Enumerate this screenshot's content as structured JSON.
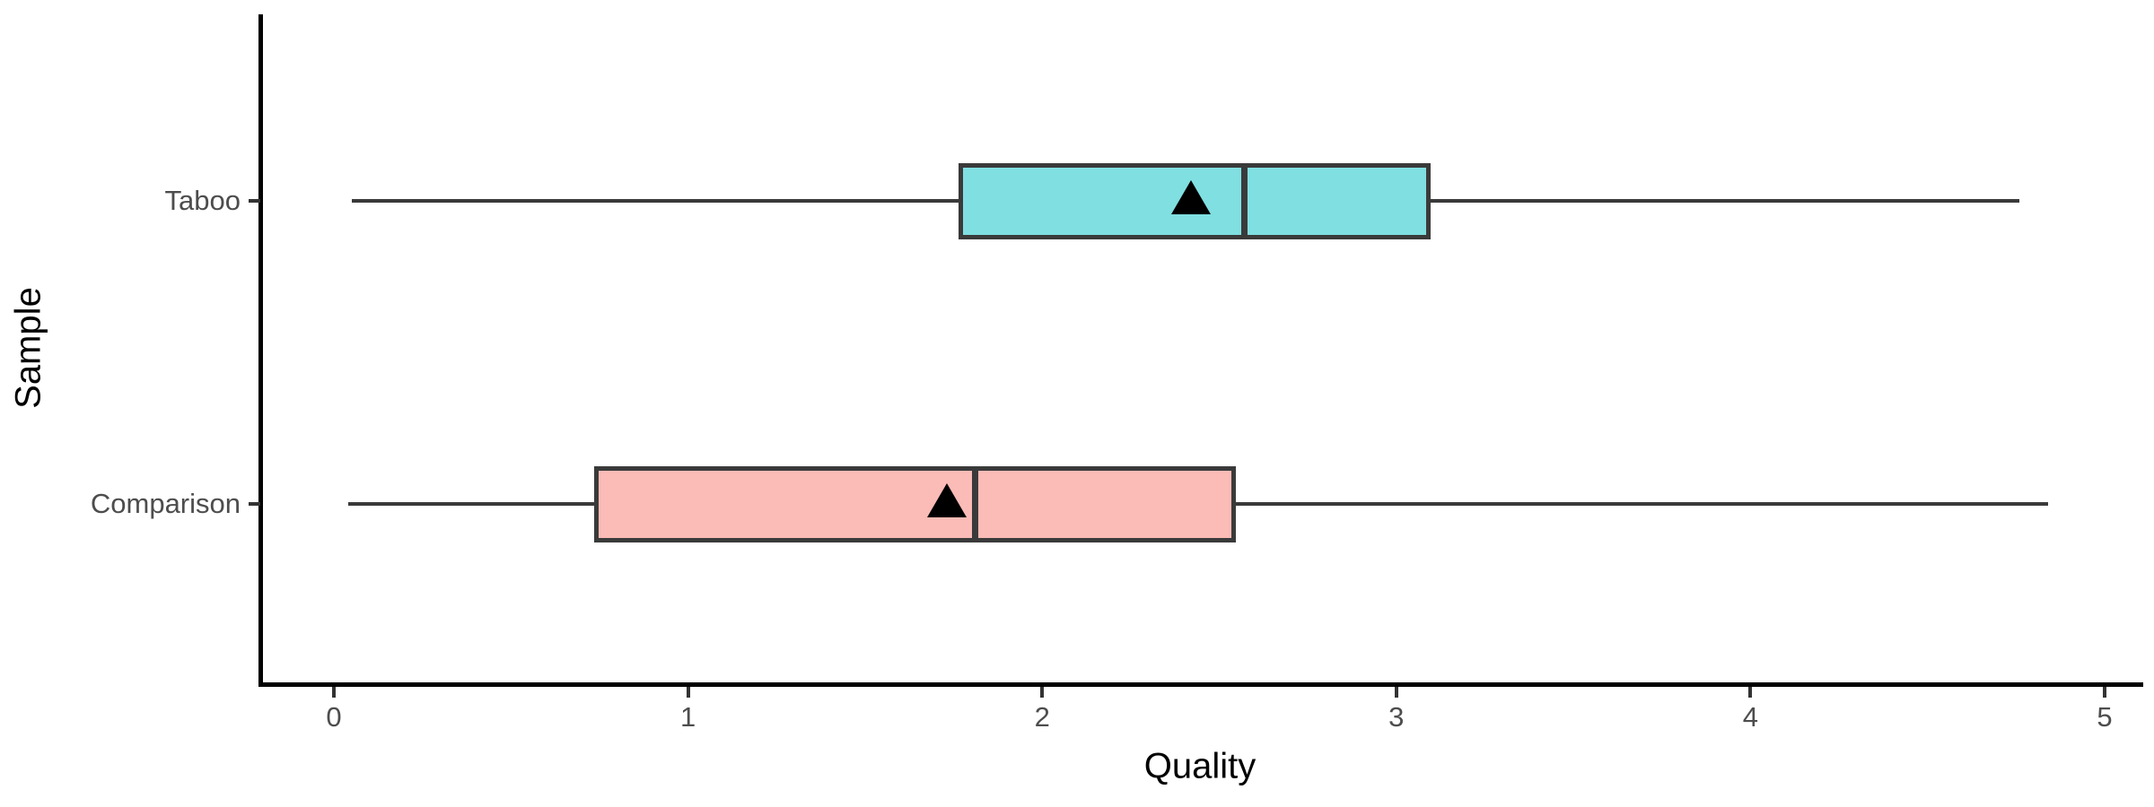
{
  "chart_data": {
    "type": "boxplot",
    "orientation": "horizontal",
    "title": "",
    "xlabel": "Quality",
    "ylabel": "Sample",
    "xlim": [
      0,
      5
    ],
    "x_ticks": [
      "0",
      "1",
      "2",
      "3",
      "4",
      "5"
    ],
    "grid": false,
    "legend": "none",
    "categories": [
      "Taboo",
      "Comparison"
    ],
    "series": [
      {
        "name": "Taboo",
        "min": 0.05,
        "q1": 1.77,
        "median": 2.57,
        "q3": 3.09,
        "max": 4.76,
        "mean": 2.42,
        "fill": "#80DFE1"
      },
      {
        "name": "Comparison",
        "min": 0.04,
        "q1": 0.74,
        "median": 1.81,
        "q3": 2.54,
        "max": 4.84,
        "mean": 1.73,
        "fill": "#FBBBB6"
      }
    ],
    "mean_marker": "filled-black-triangle",
    "colors": {
      "box_border": "#3A3A3A",
      "whisker": "#3A3A3A",
      "median": "#3A3A3A",
      "axis_line": "#000000",
      "tick_label": "#4D4D4D",
      "axis_title": "#000000",
      "background": "#FFFFFF"
    }
  }
}
